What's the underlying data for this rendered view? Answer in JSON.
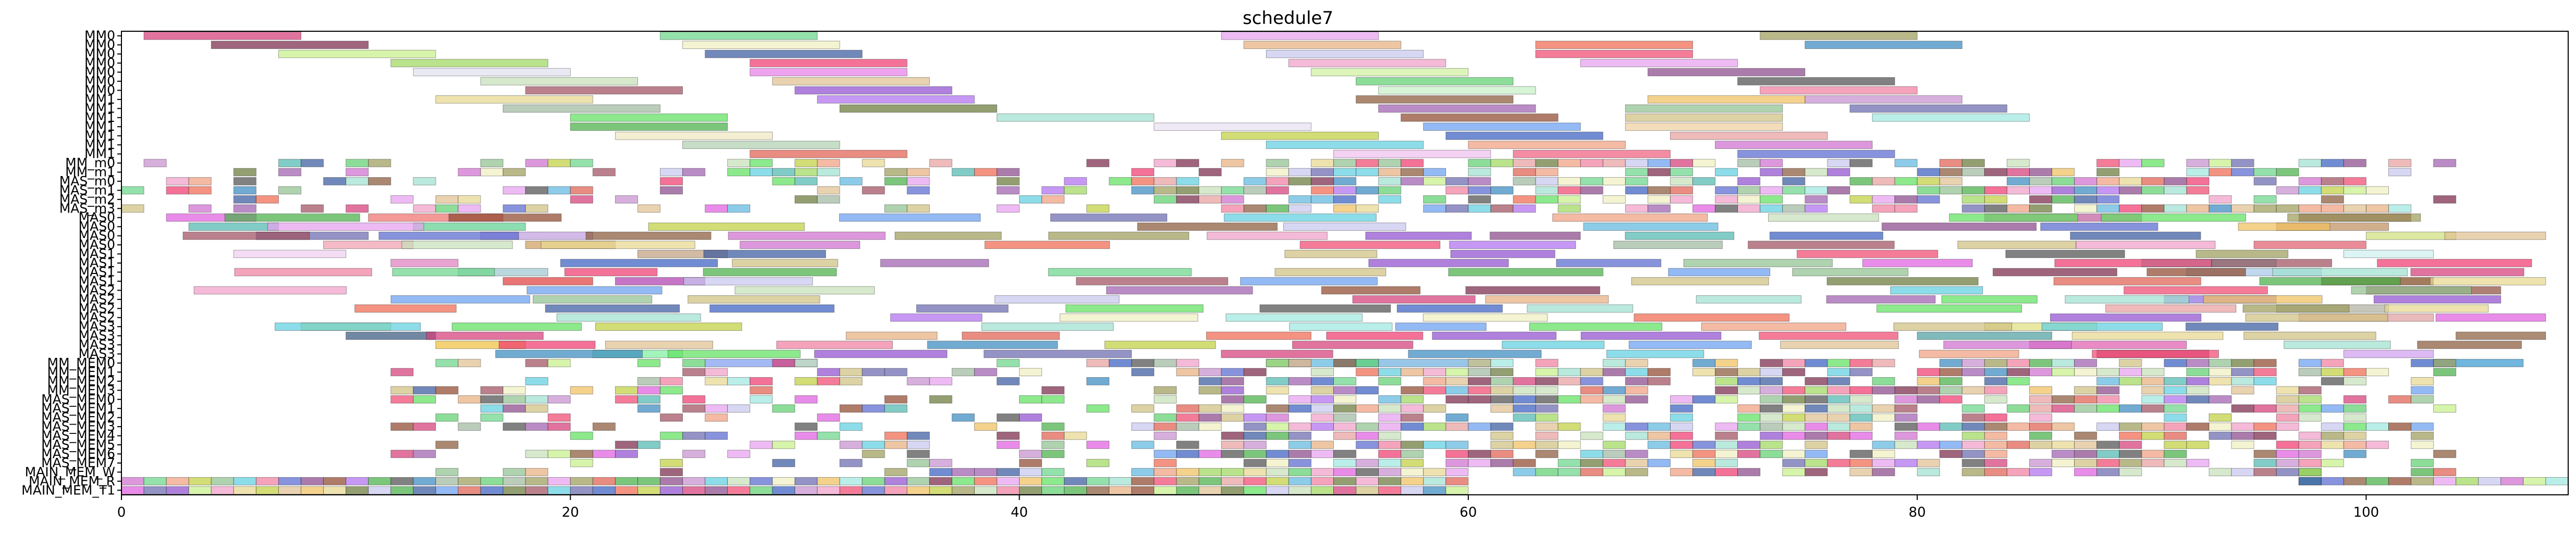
{
  "chart_data": {
    "type": "gantt",
    "title": "schedule7",
    "xlabel": "",
    "ylabel": "",
    "xlim": [
      0,
      109
    ],
    "xticks": [
      0,
      20,
      40,
      60,
      80,
      100
    ],
    "grid": false,
    "legend": "none",
    "rows": [
      "MM0",
      "MM0",
      "MM0",
      "MM0",
      "MM0",
      "MM0",
      "MM0",
      "MM1",
      "MM1",
      "MM1",
      "MM1",
      "MM1",
      "MM1",
      "MM1",
      "MM_m0",
      "MM_m1",
      "MAS_m0",
      "MAS_m1",
      "MAS_m2",
      "MAS_m3",
      "MAS0",
      "MAS0",
      "MAS0",
      "MAS0",
      "MAS1",
      "MAS1",
      "MAS1",
      "MAS1",
      "MAS2",
      "MAS2",
      "MAS2",
      "MAS2",
      "MAS3",
      "MAS3",
      "MAS3",
      "MAS3",
      "MM_MEM0",
      "MM_MEM1",
      "MM_MEM2",
      "MM_MEM3",
      "MAS_MEM0",
      "MAS_MEM1",
      "MAS_MEM2",
      "MAS_MEM3",
      "MAS_MEM4",
      "MAS_MEM5",
      "MAS_MEM6",
      "MAS_MEM7",
      "MAIN_MEM_W",
      "MAIN_MEM_R",
      "MAIN_MEM_T1"
    ],
    "tasks": [
      {
        "row": 0,
        "start": 1,
        "end": 8,
        "color": "#d63d7a"
      },
      {
        "row": 0,
        "start": 24,
        "end": 31,
        "color": "#6bd68a"
      },
      {
        "row": 0,
        "start": 49,
        "end": 56,
        "color": "#e8a0f0"
      },
      {
        "row": 0,
        "start": 73,
        "end": 80,
        "color": "#9c9c5c"
      },
      {
        "row": 1,
        "start": 4,
        "end": 11,
        "color": "#7a2a4a"
      },
      {
        "row": 1,
        "start": 25,
        "end": 32,
        "color": "#f0f0c0"
      },
      {
        "row": 1,
        "start": 50,
        "end": 57,
        "color": "#e8b080"
      },
      {
        "row": 1,
        "start": 63,
        "end": 70,
        "color": "#f06a50"
      },
      {
        "row": 1,
        "start": 75,
        "end": 82,
        "color": "#3a8ac0"
      },
      {
        "row": 2,
        "start": 7,
        "end": 14,
        "color": "#c8f08a"
      },
      {
        "row": 2,
        "start": 26,
        "end": 33,
        "color": "#3a5aa0"
      },
      {
        "row": 2,
        "start": 51,
        "end": 58,
        "color": "#c8c8f0"
      },
      {
        "row": 2,
        "start": 63,
        "end": 70,
        "color": "#f04a70"
      },
      {
        "row": 3,
        "start": 12,
        "end": 19,
        "color": "#a0d860"
      },
      {
        "row": 3,
        "start": 28,
        "end": 35,
        "color": "#f03a70"
      },
      {
        "row": 3,
        "start": 52,
        "end": 59,
        "color": "#f0a0c8"
      },
      {
        "row": 3,
        "start": 65,
        "end": 72,
        "color": "#e8a0f0"
      },
      {
        "row": 4,
        "start": 13,
        "end": 20,
        "color": "#e0e0f0"
      },
      {
        "row": 4,
        "start": 28,
        "end": 35,
        "color": "#e880e8"
      },
      {
        "row": 4,
        "start": 53,
        "end": 60,
        "color": "#d0f0a0"
      },
      {
        "row": 4,
        "start": 68,
        "end": 75,
        "color": "#8a4a8a"
      },
      {
        "row": 5,
        "start": 16,
        "end": 23,
        "color": "#c8e0b8"
      },
      {
        "row": 5,
        "start": 29,
        "end": 36,
        "color": "#e0c090"
      },
      {
        "row": 5,
        "start": 55,
        "end": 62,
        "color": "#60d070"
      },
      {
        "row": 5,
        "start": 72,
        "end": 79,
        "color": "#505050"
      },
      {
        "row": 6,
        "start": 18,
        "end": 25,
        "color": "#a05060"
      },
      {
        "row": 6,
        "start": 30,
        "end": 37,
        "color": "#9050d0"
      },
      {
        "row": 6,
        "start": 56,
        "end": 63,
        "color": "#c8f0c8"
      },
      {
        "row": 6,
        "start": 73,
        "end": 80,
        "color": "#f080a0"
      },
      {
        "row": 7,
        "start": 14,
        "end": 21,
        "color": "#e8d890"
      },
      {
        "row": 7,
        "start": 31,
        "end": 38,
        "color": "#b070f0"
      },
      {
        "row": 7,
        "start": 55,
        "end": 62,
        "color": "#8a5a3a"
      },
      {
        "row": 7,
        "start": 68,
        "end": 75,
        "color": "#f0c060"
      },
      {
        "row": 7,
        "start": 75,
        "end": 82,
        "color": "#c890d0"
      },
      {
        "row": 8,
        "start": 17,
        "end": 24,
        "color": "#a0b8a0"
      },
      {
        "row": 8,
        "start": 32,
        "end": 39,
        "color": "#6a7a3a"
      },
      {
        "row": 8,
        "start": 56,
        "end": 63,
        "color": "#a060b0"
      },
      {
        "row": 8,
        "start": 67,
        "end": 74,
        "color": "#90c090"
      },
      {
        "row": 8,
        "start": 77,
        "end": 84,
        "color": "#6a6ab0"
      },
      {
        "row": 9,
        "start": 20,
        "end": 27,
        "color": "#60e060"
      },
      {
        "row": 9,
        "start": 39,
        "end": 46,
        "color": "#a0e0d0"
      },
      {
        "row": 9,
        "start": 57,
        "end": 64,
        "color": "#904a30"
      },
      {
        "row": 9,
        "start": 67,
        "end": 74,
        "color": "#d0c080"
      },
      {
        "row": 9,
        "start": 78,
        "end": 85,
        "color": "#a0e8e0"
      },
      {
        "row": 10,
        "start": 20,
        "end": 27,
        "color": "#4ab04a"
      },
      {
        "row": 10,
        "start": 46,
        "end": 53,
        "color": "#e8e0f0"
      },
      {
        "row": 10,
        "start": 58,
        "end": 65,
        "color": "#6aa0f0"
      },
      {
        "row": 10,
        "start": 67,
        "end": 74,
        "color": "#f0d0a0"
      },
      {
        "row": 11,
        "start": 22,
        "end": 29,
        "color": "#f0e8c0"
      },
      {
        "row": 11,
        "start": 49,
        "end": 56,
        "color": "#c0d040"
      },
      {
        "row": 11,
        "start": 59,
        "end": 66,
        "color": "#3a60c0"
      },
      {
        "row": 11,
        "start": 69,
        "end": 76,
        "color": "#e8a0a0"
      },
      {
        "row": 12,
        "start": 25,
        "end": 32,
        "color": "#b0d0b0"
      },
      {
        "row": 12,
        "start": 51,
        "end": 58,
        "color": "#60d0e0"
      },
      {
        "row": 12,
        "start": 60,
        "end": 67,
        "color": "#f0a080"
      },
      {
        "row": 12,
        "start": 71,
        "end": 78,
        "color": "#d070d0"
      },
      {
        "row": 13,
        "start": 28,
        "end": 35,
        "color": "#e06050"
      },
      {
        "row": 13,
        "start": 54,
        "end": 61,
        "color": "#f0c0f0"
      },
      {
        "row": 13,
        "start": 62,
        "end": 69,
        "color": "#f06080"
      },
      {
        "row": 13,
        "start": 72,
        "end": 79,
        "color": "#5a6ad0"
      },
      {
        "row": 36,
        "start": 26,
        "end": 31,
        "color": "#80a0f0"
      },
      {
        "row": 36,
        "start": 51,
        "end": 56,
        "color": "#60b8e0"
      },
      {
        "row": 36,
        "start": 56,
        "end": 61,
        "color": "#70b0e0"
      },
      {
        "row": 20,
        "start": 2,
        "end": 6,
        "color": "#e060e0"
      },
      {
        "row": 20,
        "start": 11,
        "end": 17,
        "color": "#f07070"
      },
      {
        "row": 21,
        "start": 3,
        "end": 7,
        "color": "#50b8b0"
      },
      {
        "row": 21,
        "start": 13,
        "end": 18,
        "color": "#60d090"
      },
      {
        "row": 22,
        "start": 6,
        "end": 11,
        "color": "#6a6ab0"
      },
      {
        "row": 22,
        "start": 16,
        "end": 21,
        "color": "#c0a0e0"
      },
      {
        "row": 23,
        "start": 9,
        "end": 13,
        "color": "#f0a0b0"
      },
      {
        "row": 23,
        "start": 18,
        "end": 22,
        "color": "#d0a060"
      },
      {
        "row": 24,
        "start": 5,
        "end": 10,
        "color": "#f0d0f0"
      },
      {
        "row": 24,
        "start": 23,
        "end": 27,
        "color": "#c0a080"
      },
      {
        "row": 25,
        "start": 12,
        "end": 15,
        "color": "#e080c0"
      },
      {
        "row": 26,
        "start": 15,
        "end": 19,
        "color": "#a0c8d0"
      },
      {
        "row": 27,
        "start": 17,
        "end": 21,
        "color": "#e04040"
      },
      {
        "row": 27,
        "start": 22,
        "end": 26,
        "color": "#b040b0"
      },
      {
        "row": 32,
        "start": 8,
        "end": 12,
        "color": "#d0d060"
      },
      {
        "row": 33,
        "start": 10,
        "end": 14,
        "color": "#3a5a80"
      },
      {
        "row": 34,
        "start": 14,
        "end": 18,
        "color": "#f0c040"
      },
      {
        "row": 34,
        "start": 85,
        "end": 92,
        "color": "#e060b0"
      },
      {
        "row": 35,
        "start": 21,
        "end": 25,
        "color": "#80f0a0"
      },
      {
        "row": 35,
        "start": 99,
        "end": 103,
        "color": "#d0a0f0"
      },
      {
        "row": 36,
        "start": 103,
        "end": 107,
        "color": "#3a9ad0"
      },
      {
        "row": 26,
        "start": 92,
        "end": 98,
        "color": "#a8c8e8"
      },
      {
        "row": 27,
        "start": 98,
        "end": 103,
        "color": "#804a20"
      },
      {
        "row": 28,
        "start": 100,
        "end": 106,
        "color": "#905040"
      },
      {
        "row": 33,
        "start": 104,
        "end": 108,
        "color": "#8a6040"
      },
      {
        "row": 20,
        "start": 83,
        "end": 90,
        "color": "#c060a0"
      },
      {
        "row": 21,
        "start": 96,
        "end": 101,
        "color": "#c09060"
      },
      {
        "row": 22,
        "start": 100,
        "end": 104,
        "color": "#d0e080"
      },
      {
        "row": 20,
        "start": 97,
        "end": 102,
        "color": "#904040"
      },
      {
        "row": 23,
        "start": 95,
        "end": 100,
        "color": "#e06070"
      },
      {
        "row": 24,
        "start": 99,
        "end": 103,
        "color": "#d0f0f0"
      },
      {
        "row": 25,
        "start": 90,
        "end": 96,
        "color": "#60c8c0"
      },
      {
        "row": 29,
        "start": 91,
        "end": 96,
        "color": "#9070e0"
      },
      {
        "row": 30,
        "start": 96,
        "end": 101,
        "color": "#b0b0a0"
      },
      {
        "row": 31,
        "start": 97,
        "end": 103,
        "color": "#e0a0a0"
      },
      {
        "row": 32,
        "start": 83,
        "end": 88,
        "color": "#e0e080"
      },
      {
        "row": 33,
        "start": 80,
        "end": 86,
        "color": "#50a0a0"
      },
      {
        "row": 35,
        "start": 88,
        "end": 93,
        "color": "#c04080"
      },
      {
        "row": 48,
        "start": 97,
        "end": 98,
        "color": "#5a9a4a"
      },
      {
        "row": 49,
        "start": 97,
        "end": 98,
        "color": "#3a8a3a"
      }
    ],
    "dense_region": {
      "rows_from": 14,
      "rows_to": 50,
      "x_from": 0,
      "x_to": 109
    }
  }
}
